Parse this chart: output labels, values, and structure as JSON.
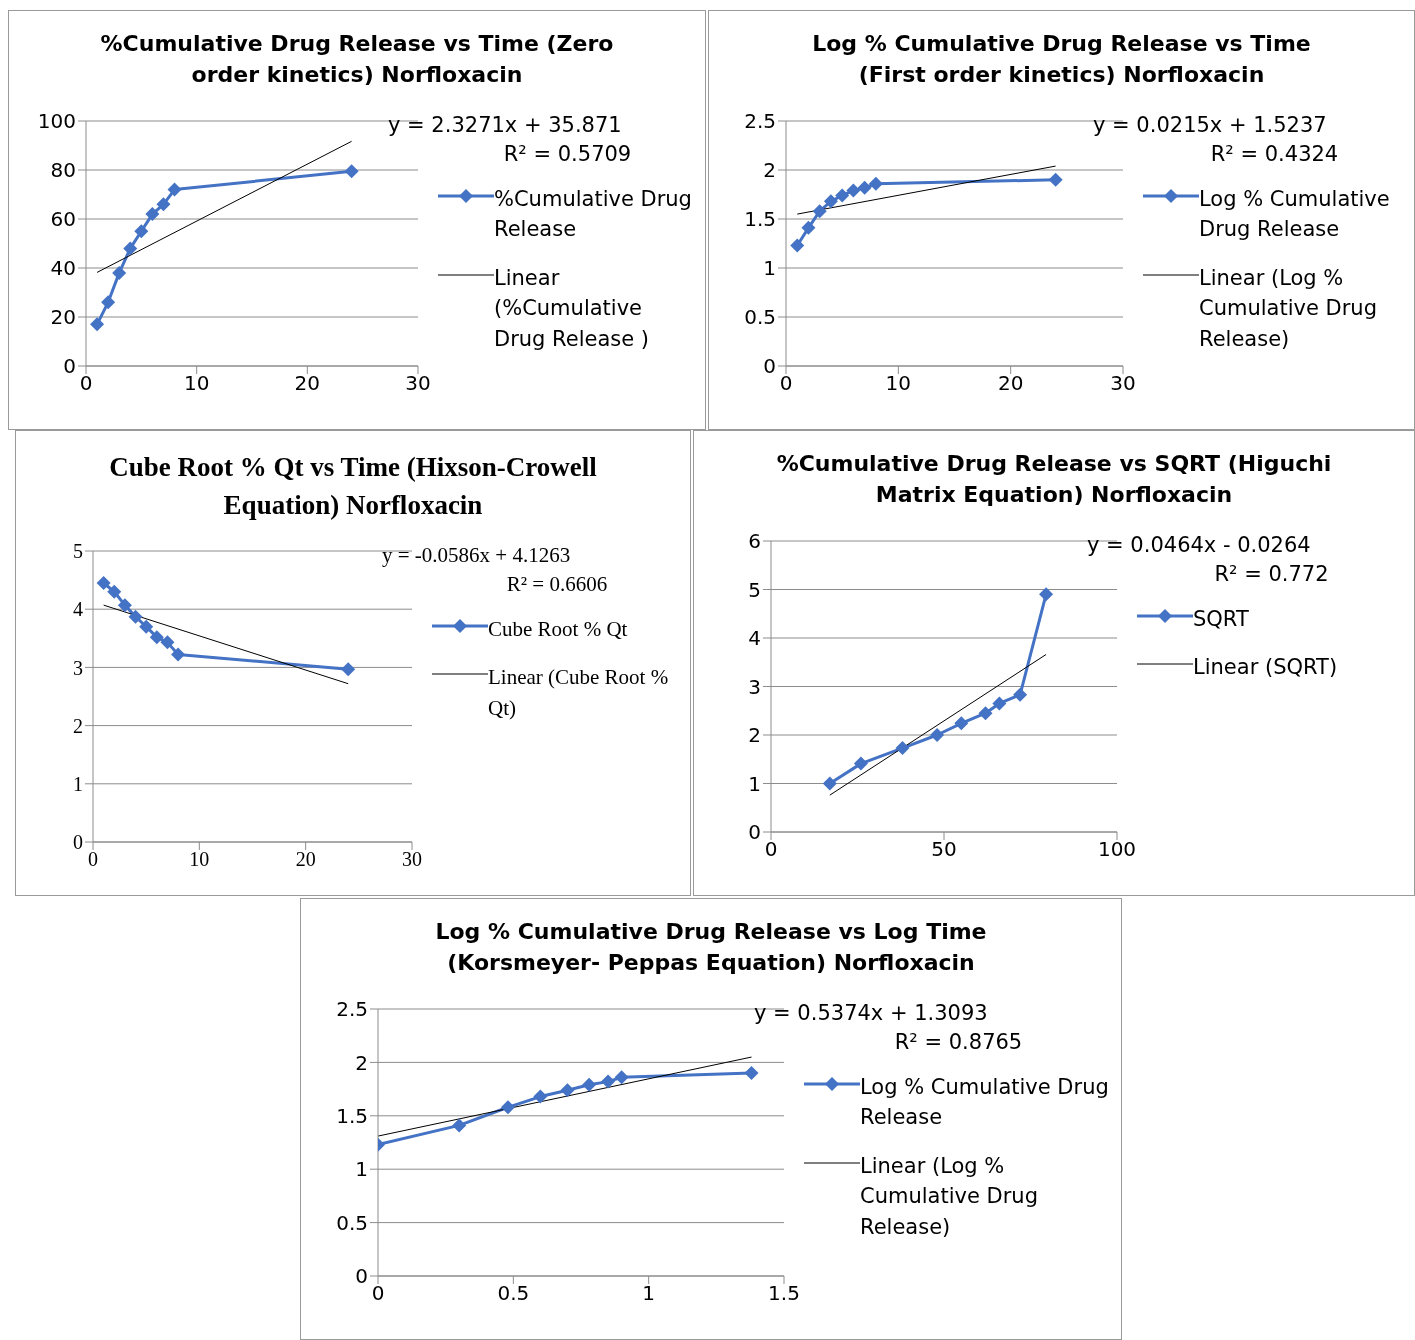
{
  "chart_data": [
    {
      "type": "line",
      "title": "%Cumulative Drug Release vs Time (Zero order kinetics) Norfloxacin",
      "x": [
        1,
        2,
        3,
        4,
        5,
        6,
        7,
        8,
        24
      ],
      "xlim": [
        0,
        30
      ],
      "xticks": [
        0,
        10,
        20,
        30
      ],
      "ylim": [
        0,
        100
      ],
      "yticks": [
        0,
        20,
        40,
        60,
        80,
        100
      ],
      "grid": "y",
      "legend": "right",
      "annotations": [
        "y = 2.3271x + 35.871",
        "R² = 0.5709"
      ],
      "series": [
        {
          "name": "%Cumulative Drug Release",
          "color": "#4472c4",
          "marker": "diamond",
          "values": [
            17,
            26,
            38,
            48,
            55,
            62,
            66,
            72,
            79.5
          ]
        },
        {
          "name": "Linear (%Cumulative Drug Release )",
          "type": "line",
          "color": "#000000",
          "marker": "none",
          "x": [
            1,
            24
          ],
          "values": [
            38.2,
            91.7
          ]
        }
      ]
    },
    {
      "type": "line",
      "title": "Log % Cumulative Drug Release vs Time (First order kinetics) Norfloxacin",
      "x": [
        1,
        2,
        3,
        4,
        5,
        6,
        7,
        8,
        24
      ],
      "xlim": [
        0,
        30
      ],
      "xticks": [
        0,
        10,
        20,
        30
      ],
      "ylim": [
        0,
        2.5
      ],
      "yticks": [
        0,
        0.5,
        1,
        1.5,
        2,
        2.5
      ],
      "grid": "y",
      "legend": "right",
      "annotations": [
        "y = 0.0215x + 1.5237",
        "R² = 0.4324"
      ],
      "series": [
        {
          "name": "Log % Cumulative Drug Release",
          "color": "#4472c4",
          "marker": "diamond",
          "values": [
            1.23,
            1.41,
            1.58,
            1.68,
            1.74,
            1.79,
            1.82,
            1.86,
            1.9
          ]
        },
        {
          "name": "Linear (Log % Cumulative Drug Release)",
          "type": "line",
          "color": "#000000",
          "marker": "none",
          "x": [
            1,
            24
          ],
          "values": [
            1.55,
            2.04
          ]
        }
      ]
    },
    {
      "type": "line",
      "title": "Cube Root % Qt vs Time (Hixson-Crowell Equation) Norfloxacin",
      "x": [
        1,
        2,
        3,
        4,
        5,
        6,
        7,
        8,
        24
      ],
      "xlim": [
        0,
        30
      ],
      "xticks": [
        0,
        10,
        20,
        30
      ],
      "ylim": [
        0,
        5
      ],
      "yticks": [
        0,
        1,
        2,
        3,
        4,
        5
      ],
      "grid": "y",
      "legend": "right",
      "annotations": [
        "y = -0.0586x + 4.1263",
        "R² = 0.6606"
      ],
      "series": [
        {
          "name": "Cube Root % Qt",
          "color": "#4472c4",
          "marker": "diamond",
          "values": [
            4.45,
            4.3,
            4.07,
            3.87,
            3.7,
            3.52,
            3.43,
            3.22,
            2.97
          ]
        },
        {
          "name": "Linear (Cube Root % Qt)",
          "type": "line",
          "color": "#000000",
          "marker": "none",
          "x": [
            1,
            24
          ],
          "values": [
            4.07,
            2.72
          ]
        }
      ]
    },
    {
      "type": "line",
      "title": "%Cumulative Drug Release  vs SQRT (Higuchi Matrix Equation) Norfloxacin",
      "x": [
        17,
        26,
        38,
        48,
        55,
        62,
        66,
        72,
        79.5
      ],
      "xlim": [
        0,
        100
      ],
      "xticks": [
        0,
        50,
        100
      ],
      "ylim": [
        0,
        6
      ],
      "yticks": [
        0,
        1,
        2,
        3,
        4,
        5,
        6
      ],
      "grid": "y",
      "legend": "right",
      "annotations": [
        "y = 0.0464x - 0.0264",
        "R² = 0.772"
      ],
      "series": [
        {
          "name": "SQRT",
          "color": "#4472c4",
          "marker": "diamond",
          "values": [
            1,
            1.41,
            1.73,
            2,
            2.24,
            2.45,
            2.65,
            2.83,
            4.9
          ]
        },
        {
          "name": "Linear (SQRT)",
          "type": "line",
          "color": "#000000",
          "marker": "none",
          "x": [
            17,
            79.5
          ],
          "values": [
            0.76,
            3.66
          ]
        }
      ]
    },
    {
      "type": "line",
      "title": "Log % Cumulative Drug Release vs Log Time (Korsmeyer- Peppas Equation) Norfloxacin",
      "x": [
        0,
        0.3,
        0.48,
        0.6,
        0.7,
        0.78,
        0.85,
        0.9,
        1.38
      ],
      "xlim": [
        0,
        1.5
      ],
      "xticks": [
        0,
        0.5,
        1,
        1.5
      ],
      "ylim": [
        0,
        2.5
      ],
      "yticks": [
        0,
        0.5,
        1,
        1.5,
        2,
        2.5
      ],
      "grid": "y",
      "legend": "right",
      "annotations": [
        "y = 0.5374x + 1.3093",
        "R² = 0.8765"
      ],
      "series": [
        {
          "name": "Log % Cumulative Drug Release",
          "color": "#4472c4",
          "marker": "diamond",
          "values": [
            1.23,
            1.41,
            1.58,
            1.68,
            1.74,
            1.79,
            1.82,
            1.86,
            1.9
          ]
        },
        {
          "name": "Linear (Log % Cumulative Drug Release)",
          "type": "line",
          "color": "#000000",
          "marker": "none",
          "x": [
            0,
            1.38
          ],
          "values": [
            1.31,
            2.05
          ]
        }
      ]
    }
  ]
}
